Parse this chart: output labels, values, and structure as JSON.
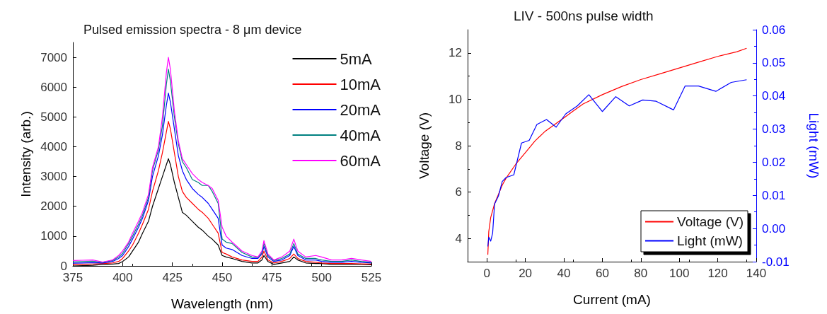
{
  "chart_data": [
    {
      "type": "line",
      "title": "Pulsed emission spectra - 8 μm device",
      "xlabel": "Wavelength (nm)",
      "ylabel": "Intensity (arb.)",
      "legend": "top right",
      "xlim": [
        375,
        525
      ],
      "xticks": [
        375,
        400,
        425,
        450,
        475,
        500,
        525
      ],
      "ylim": [
        0,
        7500
      ],
      "yticks": [
        0,
        1000,
        2000,
        3000,
        4000,
        5000,
        6000,
        7000
      ],
      "x": [
        375,
        380,
        385,
        390,
        395,
        398,
        400,
        403,
        405,
        408,
        410,
        413,
        415,
        418,
        420,
        422,
        423,
        424,
        426,
        428,
        430,
        432,
        435,
        438,
        440,
        443,
        445,
        448,
        450,
        452,
        455,
        460,
        465,
        468,
        470,
        471,
        473,
        476,
        480,
        484,
        486,
        488,
        492,
        497,
        500,
        505,
        510,
        515,
        520,
        525
      ],
      "series": [
        {
          "name": "5mA",
          "color": "#000000",
          "values": [
            0,
            10,
            20,
            50,
            60,
            80,
            150,
            300,
            500,
            800,
            1100,
            1500,
            2000,
            2600,
            3000,
            3400,
            3600,
            3400,
            2800,
            2300,
            1800,
            1700,
            1500,
            1300,
            1200,
            1000,
            900,
            700,
            350,
            300,
            250,
            150,
            100,
            100,
            200,
            350,
            150,
            50,
            100,
            150,
            300,
            200,
            100,
            80,
            80,
            50,
            50,
            50,
            50,
            40
          ]
        },
        {
          "name": "10mA",
          "color": "#ff0000",
          "values": [
            45,
            55,
            65,
            80,
            100,
            150,
            250,
            500,
            700,
            1100,
            1400,
            1900,
            2500,
            3200,
            3800,
            4500,
            4850,
            4600,
            3800,
            3000,
            2500,
            2300,
            2100,
            1900,
            1800,
            1600,
            1400,
            1100,
            450,
            400,
            300,
            200,
            150,
            150,
            300,
            500,
            200,
            100,
            150,
            250,
            400,
            250,
            150,
            120,
            100,
            80,
            80,
            80,
            70,
            60
          ]
        },
        {
          "name": "20mA",
          "color": "#0000ff",
          "values": [
            90,
            100,
            110,
            100,
            150,
            250,
            350,
            650,
            900,
            1300,
            1600,
            2200,
            3000,
            3700,
            4400,
            5400,
            5800,
            5500,
            4600,
            3700,
            3200,
            2900,
            2600,
            2400,
            2300,
            2100,
            1900,
            1600,
            700,
            600,
            550,
            350,
            250,
            250,
            400,
            650,
            300,
            150,
            200,
            350,
            650,
            350,
            200,
            200,
            150,
            120,
            120,
            150,
            120,
            100
          ]
        },
        {
          "name": "40mA",
          "color": "#008080",
          "values": [
            135,
            145,
            155,
            120,
            180,
            300,
            420,
            750,
            1000,
            1400,
            1700,
            2300,
            3200,
            3900,
            4700,
            6100,
            6600,
            6200,
            5000,
            4100,
            3500,
            3300,
            2900,
            2800,
            2700,
            2700,
            2500,
            2100,
            900,
            800,
            750,
            450,
            300,
            280,
            450,
            750,
            350,
            180,
            250,
            400,
            750,
            400,
            250,
            250,
            200,
            150,
            150,
            200,
            150,
            120
          ]
        },
        {
          "name": "60mA",
          "color": "#ff00ff",
          "values": [
            180,
            190,
            200,
            130,
            200,
            350,
            500,
            800,
            1100,
            1500,
            1800,
            2400,
            3300,
            4000,
            5000,
            6500,
            7000,
            6600,
            5200,
            4200,
            3600,
            3400,
            3100,
            2900,
            2800,
            2700,
            2600,
            2200,
            1300,
            1000,
            800,
            500,
            350,
            300,
            500,
            850,
            400,
            200,
            300,
            500,
            900,
            500,
            300,
            350,
            300,
            200,
            200,
            250,
            200,
            150
          ]
        }
      ]
    },
    {
      "type": "line",
      "title": "LIV - 500ns pulse width",
      "xlabel": "Current (mA)",
      "ylabel": "Voltage (V)",
      "y2label": "Light (mW)",
      "legend": "bottom right",
      "xlim": [
        -10,
        140
      ],
      "xticks": [
        0,
        20,
        40,
        60,
        80,
        100,
        120,
        140
      ],
      "ylim": [
        3,
        13
      ],
      "yticks": [
        4,
        6,
        8,
        10,
        12
      ],
      "y2lim": [
        -0.01,
        0.06
      ],
      "y2ticks": [
        {
          "value": -0.01,
          "label": "-0.01"
        },
        {
          "value": 0,
          "label": "0.00"
        },
        {
          "value": 0.01,
          "label": "0.01"
        },
        {
          "value": 0.02,
          "label": "0.02"
        },
        {
          "value": 0.03,
          "label": "0.03"
        },
        {
          "value": 0.04,
          "label": "0.04"
        },
        {
          "value": 0.05,
          "label": "0.05"
        },
        {
          "value": 0.06,
          "label": "0.06"
        }
      ],
      "series": [
        {
          "name": "Voltage (V)",
          "color": "#ff0000",
          "x": [
            0.5,
            1,
            2,
            4,
            6,
            8,
            10,
            15,
            20,
            25,
            30,
            35,
            40,
            45,
            50,
            60,
            70,
            80,
            90,
            100,
            110,
            120,
            130,
            135
          ],
          "values": [
            3.3,
            4.3,
            4.9,
            5.5,
            5.9,
            6.3,
            6.6,
            7.2,
            7.7,
            8.2,
            8.6,
            8.9,
            9.2,
            9.5,
            9.8,
            10.2,
            10.55,
            10.85,
            11.1,
            11.35,
            11.6,
            11.85,
            12.05,
            12.2
          ]
        },
        {
          "name": "Light (mW)",
          "color": "#0000ff",
          "axis": "y2",
          "x": [
            0.5,
            1,
            2,
            3,
            4,
            6,
            8,
            10,
            14,
            18,
            22,
            26,
            31,
            36,
            41,
            47,
            53,
            60,
            67,
            74,
            81,
            88,
            97,
            103,
            110,
            119,
            127,
            135
          ],
          "values": [
            -0.0054,
            -0.0026,
            -0.0038,
            -0.0014,
            0.0074,
            0.0098,
            0.0142,
            0.0154,
            0.0162,
            0.0258,
            0.0266,
            0.0314,
            0.0329,
            0.0306,
            0.0346,
            0.037,
            0.0404,
            0.0353,
            0.0398,
            0.037,
            0.0388,
            0.0384,
            0.0358,
            0.043,
            0.043,
            0.0414,
            0.0441,
            0.0449
          ]
        }
      ]
    }
  ]
}
